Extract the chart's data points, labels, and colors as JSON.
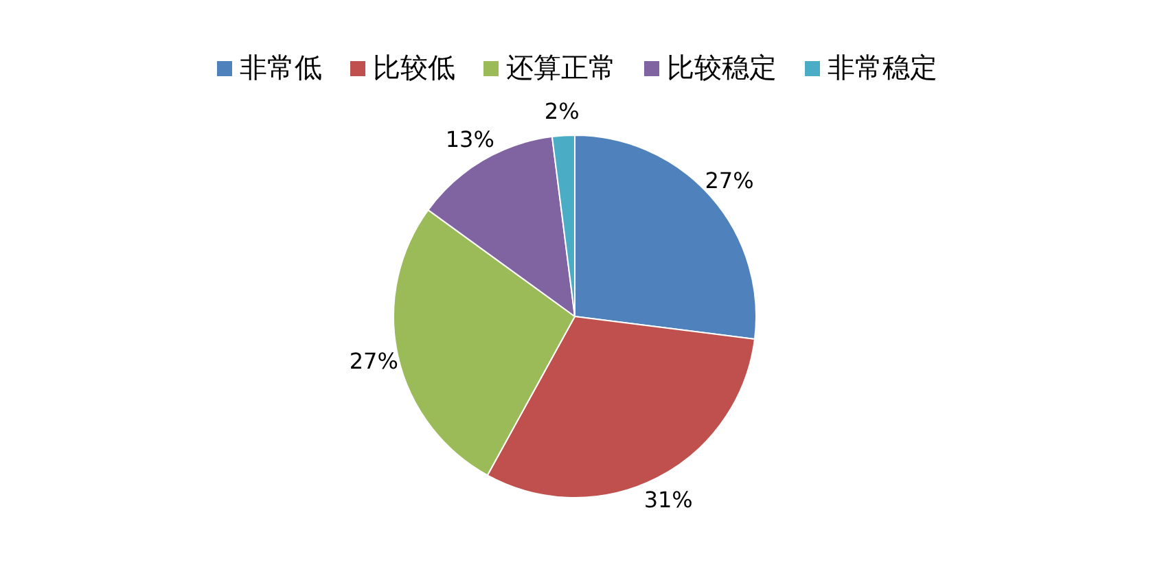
{
  "chart_data": {
    "type": "pie",
    "categories": [
      "非常低",
      "比较低",
      "还算正常",
      "比较稳定",
      "非常稳定"
    ],
    "values": [
      27,
      31,
      27,
      13,
      2
    ],
    "colors": [
      "#4f81bd",
      "#c0504d",
      "#9bbb59",
      "#8064a2",
      "#4bacc6"
    ],
    "value_labels": [
      "27%",
      "31%",
      "27%",
      "13%",
      "2%"
    ],
    "legend": "top"
  }
}
